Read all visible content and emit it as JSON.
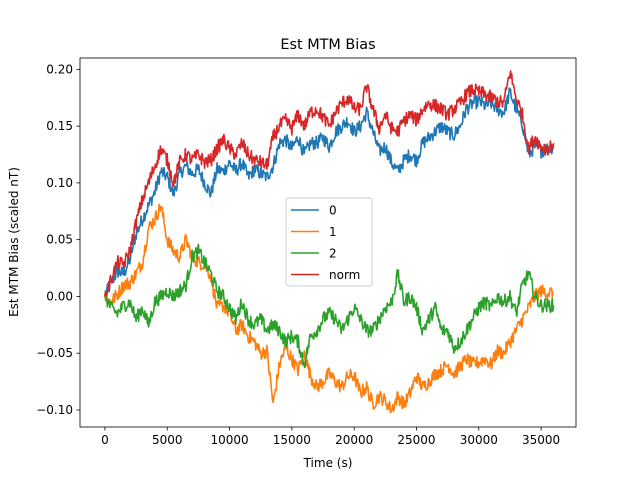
{
  "chart_data": {
    "type": "line",
    "title": "Est MTM Bias",
    "xlabel": "Time (s)",
    "ylabel": "Est MTM Bias (scaled nT)",
    "xlim": [
      -2000,
      37800
    ],
    "ylim": [
      -0.115,
      0.21
    ],
    "xticks": [
      0,
      5000,
      10000,
      15000,
      20000,
      25000,
      30000,
      35000
    ],
    "yticks": [
      -0.1,
      -0.05,
      0.0,
      0.05,
      0.1,
      0.15,
      0.2
    ],
    "xtick_labels": [
      "0",
      "5000",
      "10000",
      "15000",
      "20000",
      "25000",
      "30000",
      "35000"
    ],
    "ytick_labels": [
      "−0.10",
      "−0.05",
      "0.00",
      "0.05",
      "0.10",
      "0.15",
      "0.20"
    ],
    "legend_position": "center",
    "series": [
      {
        "name": "0",
        "color": "#1f77b4",
        "x": [
          0,
          500,
          1000,
          1500,
          2000,
          2500,
          3000,
          3500,
          4000,
          4500,
          5000,
          5500,
          6000,
          6500,
          7000,
          7500,
          8000,
          8500,
          9000,
          9500,
          10000,
          10500,
          11000,
          11500,
          12000,
          12500,
          13000,
          13500,
          14000,
          14500,
          15000,
          15500,
          16000,
          16500,
          17000,
          17500,
          18000,
          18500,
          19000,
          19500,
          20000,
          20500,
          21000,
          21500,
          22000,
          22500,
          23000,
          23500,
          24000,
          24500,
          25000,
          25500,
          26000,
          26500,
          27000,
          27500,
          28000,
          28500,
          29000,
          29500,
          30000,
          30500,
          31000,
          31500,
          32000,
          32500,
          33000,
          33500,
          34000,
          34500,
          35000,
          35500,
          36000
        ],
        "y": [
          0.0,
          0.012,
          0.022,
          0.02,
          0.032,
          0.055,
          0.068,
          0.08,
          0.092,
          0.11,
          0.105,
          0.09,
          0.108,
          0.115,
          0.108,
          0.112,
          0.1,
          0.09,
          0.112,
          0.11,
          0.118,
          0.11,
          0.118,
          0.105,
          0.112,
          0.108,
          0.105,
          0.115,
          0.135,
          0.138,
          0.13,
          0.14,
          0.125,
          0.135,
          0.135,
          0.14,
          0.132,
          0.145,
          0.15,
          0.155,
          0.145,
          0.15,
          0.162,
          0.145,
          0.128,
          0.132,
          0.118,
          0.11,
          0.12,
          0.125,
          0.12,
          0.135,
          0.14,
          0.145,
          0.15,
          0.145,
          0.142,
          0.15,
          0.165,
          0.17,
          0.172,
          0.168,
          0.17,
          0.165,
          0.162,
          0.18,
          0.165,
          0.152,
          0.125,
          0.132,
          0.128,
          0.13,
          0.132
        ]
      },
      {
        "name": "1",
        "color": "#ff7f0e",
        "x": [
          0,
          500,
          1000,
          1500,
          2000,
          2500,
          3000,
          3500,
          4000,
          4500,
          5000,
          5500,
          6000,
          6500,
          7000,
          7500,
          8000,
          8500,
          9000,
          9500,
          10000,
          10500,
          11000,
          11500,
          12000,
          12500,
          13000,
          13500,
          14000,
          14500,
          15000,
          15500,
          16000,
          16500,
          17000,
          17500,
          18000,
          18500,
          19000,
          19500,
          20000,
          20500,
          21000,
          21500,
          22000,
          22500,
          23000,
          23500,
          24000,
          24500,
          25000,
          25500,
          26000,
          26500,
          27000,
          27500,
          28000,
          28500,
          29000,
          29500,
          30000,
          30500,
          31000,
          31500,
          32000,
          32500,
          33000,
          33500,
          34000,
          34500,
          35000,
          35500,
          36000
        ],
        "y": [
          0.0,
          -0.005,
          0.002,
          0.01,
          0.012,
          0.02,
          0.03,
          0.06,
          0.068,
          0.08,
          0.05,
          0.04,
          0.035,
          0.05,
          0.035,
          0.03,
          0.028,
          0.018,
          -0.01,
          -0.008,
          -0.015,
          -0.03,
          -0.025,
          -0.035,
          -0.04,
          -0.05,
          -0.048,
          -0.095,
          -0.06,
          -0.045,
          -0.055,
          -0.065,
          -0.05,
          -0.07,
          -0.08,
          -0.075,
          -0.068,
          -0.075,
          -0.08,
          -0.07,
          -0.07,
          -0.085,
          -0.08,
          -0.095,
          -0.088,
          -0.092,
          -0.1,
          -0.088,
          -0.095,
          -0.085,
          -0.07,
          -0.08,
          -0.075,
          -0.068,
          -0.065,
          -0.06,
          -0.068,
          -0.062,
          -0.055,
          -0.06,
          -0.058,
          -0.055,
          -0.06,
          -0.048,
          -0.05,
          -0.04,
          -0.03,
          -0.02,
          -0.01,
          0.0,
          0.005,
          0.003,
          0.004
        ]
      },
      {
        "name": "2",
        "color": "#2ca02c",
        "x": [
          0,
          500,
          1000,
          1500,
          2000,
          2500,
          3000,
          3500,
          4000,
          4500,
          5000,
          5500,
          6000,
          6500,
          7000,
          7500,
          8000,
          8500,
          9000,
          9500,
          10000,
          10500,
          11000,
          11500,
          12000,
          12500,
          13000,
          13500,
          14000,
          14500,
          15000,
          15500,
          16000,
          16500,
          17000,
          17500,
          18000,
          18500,
          19000,
          19500,
          20000,
          20500,
          21000,
          21500,
          22000,
          22500,
          23000,
          23500,
          24000,
          24500,
          25000,
          25500,
          26000,
          26500,
          27000,
          27500,
          28000,
          28500,
          29000,
          29500,
          30000,
          30500,
          31000,
          31500,
          32000,
          32500,
          33000,
          33500,
          34000,
          34500,
          35000,
          35500,
          36000
        ],
        "y": [
          0.0,
          -0.01,
          -0.015,
          -0.008,
          -0.005,
          -0.02,
          -0.01,
          -0.025,
          -0.005,
          0.0,
          0.005,
          0.0,
          0.005,
          0.01,
          0.035,
          0.04,
          0.03,
          0.02,
          0.005,
          0.0,
          -0.01,
          -0.02,
          -0.005,
          -0.02,
          -0.025,
          -0.02,
          -0.03,
          -0.025,
          -0.03,
          -0.04,
          -0.035,
          -0.04,
          -0.06,
          -0.035,
          -0.03,
          -0.02,
          -0.015,
          -0.02,
          -0.03,
          -0.02,
          -0.01,
          -0.02,
          -0.03,
          -0.03,
          -0.02,
          -0.01,
          -0.005,
          0.02,
          -0.005,
          0.0,
          -0.01,
          -0.03,
          -0.02,
          -0.01,
          -0.03,
          -0.03,
          -0.045,
          -0.04,
          -0.03,
          -0.02,
          -0.01,
          -0.005,
          -0.01,
          0.0,
          -0.005,
          0.0,
          -0.015,
          0.01,
          0.02,
          0.0,
          -0.008,
          -0.008,
          -0.008
        ]
      },
      {
        "name": "norm",
        "color": "#d62728",
        "x": [
          0,
          500,
          1000,
          1500,
          2000,
          2500,
          3000,
          3500,
          4000,
          4500,
          5000,
          5500,
          6000,
          6500,
          7000,
          7500,
          8000,
          8500,
          9000,
          9500,
          10000,
          10500,
          11000,
          11500,
          12000,
          12500,
          13000,
          13500,
          14000,
          14500,
          15000,
          15500,
          16000,
          16500,
          17000,
          17500,
          18000,
          18500,
          19000,
          19500,
          20000,
          20500,
          21000,
          21500,
          22000,
          22500,
          23000,
          23500,
          24000,
          24500,
          25000,
          25500,
          26000,
          26500,
          27000,
          27500,
          28000,
          28500,
          29000,
          29500,
          30000,
          30500,
          31000,
          31500,
          32000,
          32500,
          33000,
          33500,
          34000,
          34500,
          35000,
          35500,
          36000
        ],
        "y": [
          0.0,
          0.015,
          0.03,
          0.028,
          0.04,
          0.065,
          0.085,
          0.1,
          0.115,
          0.13,
          0.12,
          0.1,
          0.118,
          0.125,
          0.12,
          0.125,
          0.118,
          0.12,
          0.13,
          0.138,
          0.13,
          0.125,
          0.135,
          0.125,
          0.12,
          0.118,
          0.115,
          0.14,
          0.15,
          0.155,
          0.148,
          0.16,
          0.15,
          0.162,
          0.165,
          0.158,
          0.15,
          0.162,
          0.17,
          0.175,
          0.165,
          0.165,
          0.185,
          0.165,
          0.148,
          0.16,
          0.148,
          0.145,
          0.155,
          0.16,
          0.155,
          0.165,
          0.17,
          0.168,
          0.165,
          0.16,
          0.165,
          0.17,
          0.178,
          0.182,
          0.18,
          0.178,
          0.175,
          0.172,
          0.17,
          0.198,
          0.175,
          0.16,
          0.13,
          0.14,
          0.132,
          0.13,
          0.135
        ]
      }
    ]
  }
}
